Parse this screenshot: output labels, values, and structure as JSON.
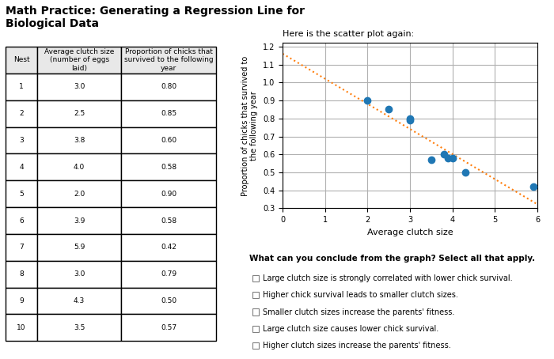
{
  "chart_data": {
    "type": "scatter",
    "title": "Math Practice: Generating a Regression Line for\nBiological Data",
    "subtitle": "Here is the scatter plot again:",
    "xlabel": "Average clutch size",
    "ylabel": "Proportion of chicks that survived to\nthe following year",
    "series": [
      {
        "type": "scatter",
        "marker": "o",
        "x": [
          3.0,
          2.5,
          3.8,
          4.0,
          2.0,
          3.9,
          5.9,
          3.0,
          4.3,
          3.5
        ],
        "values": [
          0.8,
          0.85,
          0.6,
          0.58,
          0.9,
          0.58,
          0.42,
          0.79,
          0.5,
          0.57
        ]
      },
      {
        "type": "line",
        "line_style": "dotted",
        "x": [
          0,
          6
        ],
        "values": [
          1.16107,
          0.32196
        ]
      }
    ],
    "xlim": [
      0,
      6
    ],
    "ylim": [
      0.3,
      1.22
    ],
    "xticks": [
      0,
      1,
      2,
      3,
      4,
      5,
      6
    ],
    "yticks": [
      0.3,
      0.4,
      0.5,
      0.6,
      0.7,
      0.8,
      0.9,
      1.0,
      1.1,
      1.2
    ],
    "grid": true,
    "table": {
      "columns": [
        "Nest",
        "Average clutch size\n(number of eggs\nlaid)",
        "Proportion of chicks that\nsurvived to the following\nyear"
      ],
      "rows": [
        [
          "1",
          "3.0",
          "0.80"
        ],
        [
          "2",
          "2.5",
          "0.85"
        ],
        [
          "3",
          "3.8",
          "0.60"
        ],
        [
          "4",
          "4.0",
          "0.58"
        ],
        [
          "5",
          "2.0",
          "0.90"
        ],
        [
          "6",
          "3.9",
          "0.58"
        ],
        [
          "7",
          "5.9",
          "0.42"
        ],
        [
          "8",
          "3.0",
          "0.79"
        ],
        [
          "9",
          "4.3",
          "0.50"
        ],
        [
          "10",
          "3.5",
          "0.57"
        ]
      ]
    },
    "annotations": {
      "title": "What can you conclude from the graph? Select all that apply.",
      "options": [
        "Large clutch size is strongly correlated with lower chick survival.",
        "Higher chick survival leads to smaller clutch sizes.",
        "Smaller clutch sizes increase the parents' fitness.",
        "Large clutch size causes lower chick survival.",
        "Higher clutch sizes increase the parents' fitness."
      ]
    }
  }
}
